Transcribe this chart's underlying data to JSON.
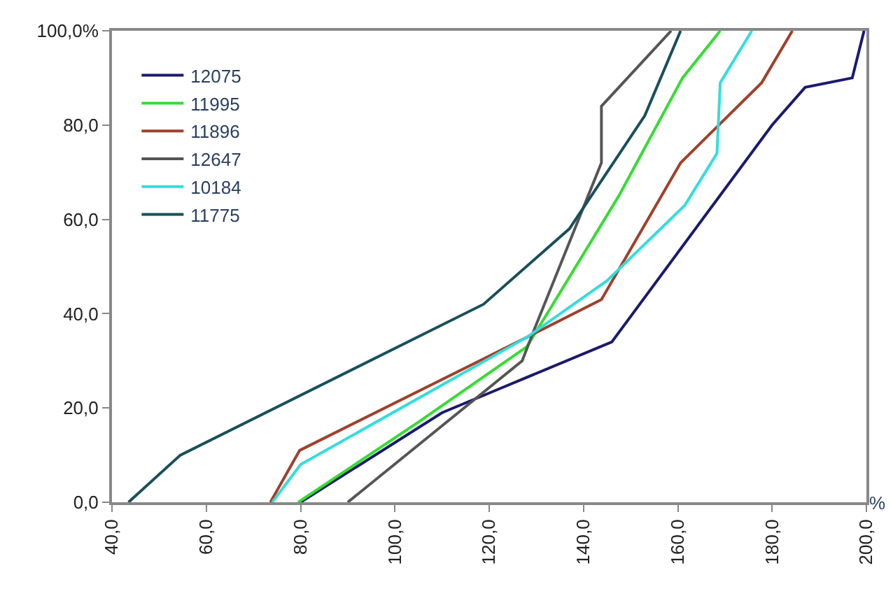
{
  "chart_data": {
    "type": "line",
    "xlabel": "%",
    "xlim": [
      40,
      200
    ],
    "xticks": [
      {
        "value": 40,
        "label": "40,0"
      },
      {
        "value": 60,
        "label": "60,0"
      },
      {
        "value": 80,
        "label": "80,0"
      },
      {
        "value": 100,
        "label": "100,0"
      },
      {
        "value": 120,
        "label": "120,0"
      },
      {
        "value": 140,
        "label": "140,0"
      },
      {
        "value": 160,
        "label": "160,0"
      },
      {
        "value": 180,
        "label": "180,0"
      },
      {
        "value": 200,
        "label": "200,0"
      }
    ],
    "ylim": [
      0,
      100
    ],
    "yticks": [
      {
        "value": 0,
        "label": "0,0"
      },
      {
        "value": 20,
        "label": "20,0"
      },
      {
        "value": 40,
        "label": "40,0"
      },
      {
        "value": 60,
        "label": "60,0"
      },
      {
        "value": 80,
        "label": "80,0"
      },
      {
        "value": 100,
        "label": "100,0%"
      }
    ],
    "legend": "top left",
    "marker": "none",
    "line_style": "solid",
    "series": [
      {
        "name": "12075",
        "color": "#1a1a6e",
        "x": [
          80,
          110,
          122,
          146,
          180,
          187,
          197,
          199.5
        ],
        "values": [
          0,
          19,
          24,
          34,
          80,
          88,
          90,
          100
        ]
      },
      {
        "name": "11995",
        "color": "#33dd33",
        "x": [
          79.5,
          105,
          128,
          133.5,
          147.5,
          161,
          169
        ],
        "values": [
          0,
          17,
          33,
          42,
          65,
          90,
          100
        ]
      },
      {
        "name": "11896",
        "color": "#a0402a",
        "x": [
          73.6,
          79.8,
          128,
          143.8,
          160.6,
          177.8,
          184.3
        ],
        "values": [
          0,
          11,
          35,
          43,
          72,
          89,
          100
        ]
      },
      {
        "name": "12647",
        "color": "#555555",
        "x": [
          90,
          127,
          129.7,
          143.8,
          143.8,
          158.6
        ],
        "values": [
          0,
          30,
          37,
          72,
          84,
          100
        ]
      },
      {
        "name": "10184",
        "color": "#33dddd",
        "x": [
          74,
          80,
          128,
          145,
          161.5,
          168.3,
          169,
          175.7
        ],
        "values": [
          0,
          8,
          35,
          47,
          63,
          74,
          89,
          100
        ]
      },
      {
        "name": "11775",
        "color": "#1a4f5a",
        "x": [
          43.5,
          54.5,
          118.8,
          137,
          153,
          160.6
        ],
        "values": [
          0,
          10,
          42,
          58,
          82,
          100
        ]
      }
    ]
  }
}
